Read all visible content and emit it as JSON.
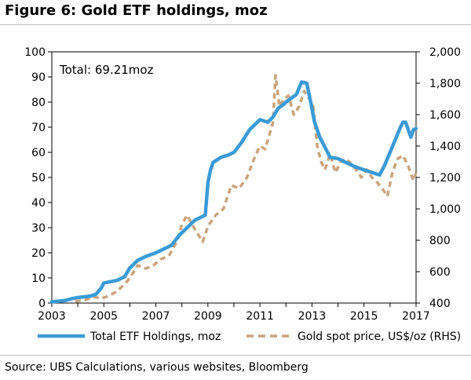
{
  "figure": {
    "title": "Figure 6: Gold ETF holdings, moz",
    "source": "Source:  UBS Calculations, various websites, Bloomberg"
  },
  "chart_data": {
    "type": "line",
    "title": "Figure 6: Gold ETF holdings, moz",
    "annotation": "Total: 69.21moz",
    "x_ticks": [
      "2003",
      "2005",
      "2007",
      "2009",
      "2011",
      "2013",
      "2015",
      "2017"
    ],
    "xlim": [
      2003,
      2017
    ],
    "left_axis": {
      "ylim": [
        0,
        100
      ],
      "ticks": [
        "0",
        "10",
        "20",
        "30",
        "40",
        "50",
        "60",
        "70",
        "80",
        "90",
        "100"
      ]
    },
    "right_axis": {
      "ylim": [
        400,
        2000
      ],
      "ticks": [
        "400",
        "600",
        "800",
        "1,000",
        "1,200",
        "1,400",
        "1,600",
        "1,800",
        "2,000"
      ]
    },
    "grid": false,
    "legend_position": "bottom",
    "colors": {
      "holdings": "#3a9ad6",
      "gold": "#c8a47e"
    },
    "series": [
      {
        "name": "Total ETF Holdings, moz",
        "axis": "left",
        "style": "solid",
        "x": [
          2003.0,
          2003.5,
          2003.8,
          2004.0,
          2004.5,
          2004.7,
          2004.9,
          2005.0,
          2005.5,
          2005.8,
          2006.0,
          2006.3,
          2006.6,
          2007.0,
          2007.3,
          2007.6,
          2007.9,
          2008.2,
          2008.5,
          2008.7,
          2008.9,
          2009.0,
          2009.1,
          2009.2,
          2009.5,
          2009.8,
          2010.0,
          2010.3,
          2010.6,
          2010.9,
          2011.0,
          2011.3,
          2011.5,
          2011.7,
          2011.9,
          2012.0,
          2012.2,
          2012.4,
          2012.6,
          2012.8,
          2012.95,
          2013.1,
          2013.3,
          2013.5,
          2013.7,
          2014.0,
          2014.3,
          2014.6,
          2015.0,
          2015.3,
          2015.6,
          2015.8,
          2016.0,
          2016.2,
          2016.4,
          2016.5,
          2016.6,
          2016.8,
          2016.9,
          2017.0
        ],
        "y": [
          0.5,
          1.0,
          1.8,
          2.2,
          2.8,
          3.5,
          6.0,
          8.0,
          9.0,
          10.5,
          14.0,
          17.0,
          18.5,
          20.0,
          21.5,
          23.0,
          27.0,
          30.0,
          33.0,
          34.0,
          35.0,
          48.0,
          53.0,
          56.0,
          58.0,
          59.0,
          60.0,
          64.0,
          69.0,
          72.0,
          73.0,
          72.0,
          74.0,
          77.5,
          79.0,
          80.0,
          81.5,
          83.0,
          88.0,
          87.5,
          80.0,
          72.0,
          66.0,
          62.0,
          58.0,
          57.5,
          56.0,
          54.5,
          53.0,
          52.0,
          51.0,
          55.0,
          60.0,
          65.0,
          70.0,
          72.0,
          72.0,
          66.0,
          69.0,
          69.5
        ]
      },
      {
        "name": "Gold spot price, US$/oz (RHS)",
        "axis": "right",
        "style": "dashed",
        "x": [
          2003.9,
          2004.3,
          2004.6,
          2004.9,
          2005.2,
          2005.5,
          2005.8,
          2006.0,
          2006.3,
          2006.6,
          2006.9,
          2007.2,
          2007.5,
          2007.8,
          2008.0,
          2008.2,
          2008.5,
          2008.8,
          2009.0,
          2009.3,
          2009.6,
          2009.9,
          2010.2,
          2010.5,
          2010.8,
          2011.0,
          2011.2,
          2011.5,
          2011.6,
          2011.75,
          2011.9,
          2012.1,
          2012.3,
          2012.5,
          2012.7,
          2012.9,
          2013.05,
          2013.2,
          2013.35,
          2013.5,
          2013.7,
          2013.9,
          2014.1,
          2014.3,
          2014.5,
          2014.7,
          2014.9,
          2015.1,
          2015.3,
          2015.5,
          2015.7,
          2015.9,
          2016.1,
          2016.3,
          2016.5,
          2016.7,
          2016.9,
          2017.0
        ],
        "y": [
          410,
          420,
          440,
          430,
          445,
          475,
          520,
          560,
          640,
          620,
          640,
          680,
          700,
          790,
          900,
          960,
          870,
          790,
          890,
          960,
          1000,
          1150,
          1130,
          1200,
          1330,
          1400,
          1380,
          1550,
          1850,
          1650,
          1700,
          1720,
          1600,
          1650,
          1750,
          1700,
          1650,
          1400,
          1300,
          1250,
          1350,
          1230,
          1300,
          1320,
          1290,
          1250,
          1200,
          1250,
          1200,
          1170,
          1130,
          1080,
          1240,
          1320,
          1340,
          1270,
          1180,
          1230
        ]
      }
    ]
  }
}
